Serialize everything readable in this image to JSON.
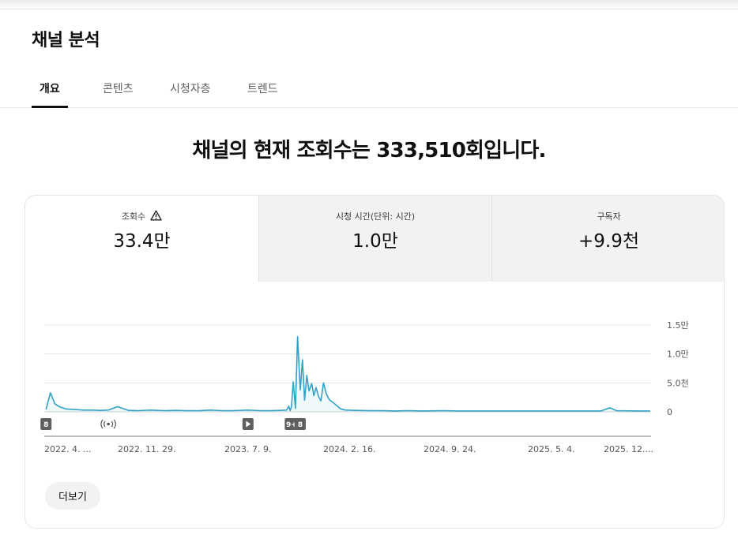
{
  "page": {
    "title": "채널 분석"
  },
  "tabs": [
    {
      "label": "개요",
      "active": true
    },
    {
      "label": "콘텐츠",
      "active": false
    },
    {
      "label": "시청자층",
      "active": false
    },
    {
      "label": "트렌드",
      "active": false
    }
  ],
  "headline": "채널의 현재 조회수는 333,510회입니다.",
  "metrics": [
    {
      "label": "조회수",
      "value": "33.4만",
      "selected": true,
      "warning_icon": "warning-triangle-icon"
    },
    {
      "label": "시청 시간(단위: 시간)",
      "value": "1.0만",
      "selected": false
    },
    {
      "label": "구독자",
      "value": "+9.9천",
      "selected": false
    }
  ],
  "chart_data": {
    "type": "area",
    "color": "#31a3c6",
    "x_tick_labels": [
      "2022. 4. ...",
      "2022. 11. 29.",
      "2023. 7. 9.",
      "2024. 2. 16.",
      "2024. 9. 24.",
      "2025. 5. 4.",
      "2025. 12...."
    ],
    "y_tick_labels": [
      "1.5만",
      "1.0만",
      "5.0천",
      "0"
    ],
    "ylim": [
      0,
      15000
    ],
    "series": [
      {
        "x": [
          "2022-04-05",
          "2022-04-15",
          "2022-04-25",
          "2022-05-05",
          "2022-05-20",
          "2022-06-10",
          "2022-07-01",
          "2022-07-20",
          "2022-08-05",
          "2022-08-25",
          "2022-09-15",
          "2022-10-10",
          "2022-11-01",
          "2022-11-29",
          "2022-12-30",
          "2023-01-25",
          "2023-02-20",
          "2023-03-20",
          "2023-04-15",
          "2023-05-10",
          "2023-06-05",
          "2023-07-09",
          "2023-08-05",
          "2023-09-01",
          "2023-09-20",
          "2023-10-05",
          "2023-10-10",
          "2023-10-13",
          "2023-10-16",
          "2023-10-20",
          "2023-10-25",
          "2023-10-30",
          "2023-11-05",
          "2023-11-10",
          "2023-11-15",
          "2023-11-20",
          "2023-11-25",
          "2023-12-01",
          "2023-12-06",
          "2023-12-11",
          "2023-12-16",
          "2023-12-22",
          "2023-12-28",
          "2024-01-03",
          "2024-01-10",
          "2024-01-17",
          "2024-01-24",
          "2024-02-05",
          "2024-02-16",
          "2024-03-10",
          "2024-04-10",
          "2024-05-10",
          "2024-06-10",
          "2024-07-10",
          "2024-08-10",
          "2024-09-24",
          "2024-11-01",
          "2024-12-15",
          "2025-02-01",
          "2025-03-20",
          "2025-05-04",
          "2025-06-20",
          "2025-08-01",
          "2025-09-20",
          "2025-10-10",
          "2025-10-25",
          "2025-12-15",
          "2026-01-10"
        ],
        "values": [
          400,
          3300,
          1400,
          900,
          500,
          400,
          300,
          300,
          250,
          300,
          900,
          250,
          200,
          300,
          200,
          250,
          200,
          200,
          300,
          200,
          200,
          300,
          200,
          200,
          250,
          300,
          1000,
          200,
          900,
          5200,
          600,
          13000,
          3800,
          9000,
          2000,
          6300,
          3600,
          4900,
          2800,
          4200,
          2800,
          1900,
          5000,
          3200,
          2100,
          1700,
          1300,
          500,
          300,
          250,
          200,
          200,
          150,
          200,
          150,
          200,
          150,
          150,
          150,
          150,
          150,
          150,
          150,
          150,
          700,
          200,
          150,
          150
        ]
      }
    ],
    "event_markers": [
      {
        "type": "badge",
        "text": "8",
        "x": "2022-04-05"
      },
      {
        "type": "live",
        "icon": "live-broadcast-icon",
        "x": "2022-08-25"
      },
      {
        "type": "video",
        "icon": "play-icon",
        "x": "2023-07-09"
      },
      {
        "type": "badge",
        "text": "9+",
        "x": "2023-10-16"
      },
      {
        "type": "badge",
        "text": "8",
        "x": "2023-11-05"
      }
    ],
    "grid": true
  },
  "more_button": {
    "label": "더보기"
  }
}
